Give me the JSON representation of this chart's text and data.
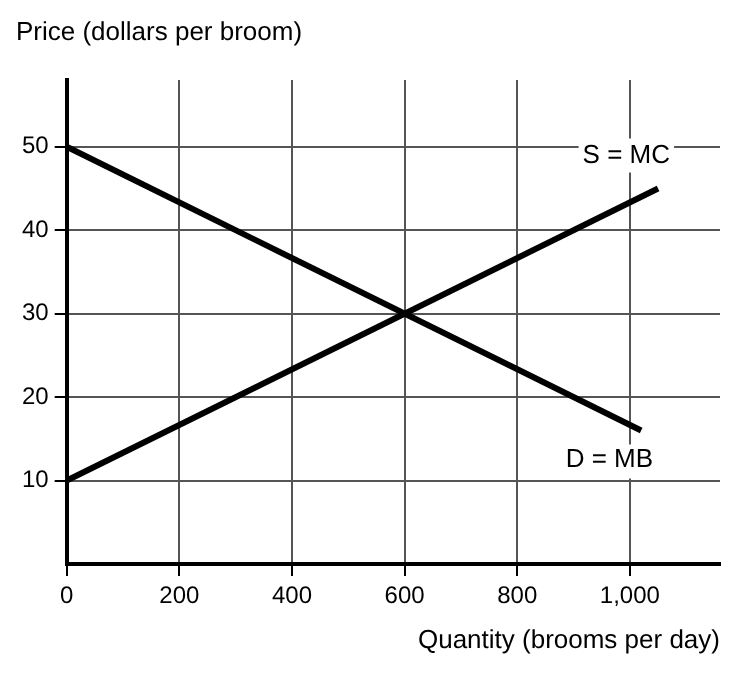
{
  "chart_data": {
    "type": "line",
    "ylabel": "Price (dollars per broom)",
    "xlabel": "Quantity (brooms per day)",
    "xlim": [
      0,
      1160
    ],
    "ylim": [
      0,
      58
    ],
    "xticks": [
      0,
      200,
      400,
      600,
      800,
      {
        "value": 1000,
        "label": "1,000"
      }
    ],
    "yticks": [
      10,
      20,
      30,
      40,
      50
    ],
    "grid": true,
    "legend": false,
    "marker": "none",
    "line_style": "solid",
    "series": [
      {
        "name": "S = MC",
        "color": "#000000",
        "x": [
          0,
          1050
        ],
        "values": [
          10,
          45
        ]
      },
      {
        "name": "D = MB",
        "color": "#000000",
        "x": [
          0,
          1020
        ],
        "values": [
          50,
          16
        ]
      }
    ]
  }
}
